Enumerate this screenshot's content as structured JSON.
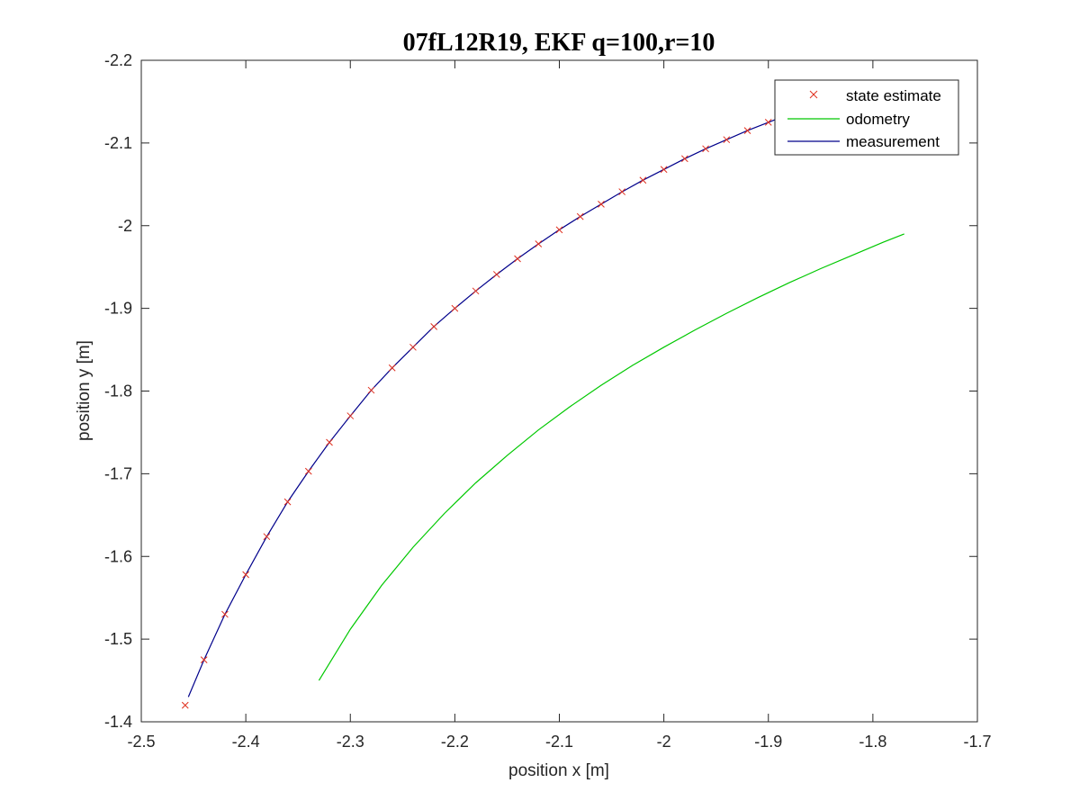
{
  "chart_data": {
    "type": "line",
    "title": "07fL12R19, EKF q=100,r=10",
    "xlabel": "position x [m]",
    "ylabel": "position y [m]",
    "xlim": [
      -2.5,
      -1.7
    ],
    "ylim": [
      -2.2,
      -1.4
    ],
    "xticks": [
      -2.5,
      -2.4,
      -2.3,
      -2.2,
      -2.1,
      -2,
      -1.9,
      -1.8,
      -1.7
    ],
    "yticks": [
      -1.4,
      -1.5,
      -1.6,
      -1.7,
      -1.8,
      -1.9,
      -2,
      -2.1,
      -2.2
    ],
    "xtick_labels": [
      "-2.5",
      "-2.4",
      "-2.3",
      "-2.2",
      "-2.1",
      "-2",
      "-1.9",
      "-1.8",
      "-1.7"
    ],
    "ytick_labels": [
      "-1.4",
      "-1.5",
      "-1.6",
      "-1.7",
      "-1.8",
      "-1.9",
      "-2",
      "-2.1",
      "-2.2"
    ],
    "grid": false,
    "legend_position": "top-right",
    "series": [
      {
        "name": "state estimate",
        "style": "marker-x",
        "color": "#e0301e",
        "x": [
          -2.458,
          -2.44,
          -2.42,
          -2.4,
          -2.38,
          -2.36,
          -2.34,
          -2.32,
          -2.3,
          -2.28,
          -2.26,
          -2.24,
          -2.22,
          -2.2,
          -2.18,
          -2.16,
          -2.14,
          -2.12,
          -2.1,
          -2.08,
          -2.06,
          -2.04,
          -2.02,
          -2.0,
          -1.98,
          -1.96,
          -1.94,
          -1.92,
          -1.9,
          -1.88,
          -1.86,
          -1.84,
          -1.82
        ],
        "y": [
          -1.42,
          -1.475,
          -1.53,
          -1.578,
          -1.624,
          -1.666,
          -1.703,
          -1.738,
          -1.77,
          -1.801,
          -1.828,
          -1.853,
          -1.878,
          -1.9,
          -1.921,
          -1.941,
          -1.96,
          -1.978,
          -1.995,
          -2.011,
          -2.026,
          -2.041,
          -2.055,
          -2.068,
          -2.081,
          -2.093,
          -2.104,
          -2.115,
          -2.125,
          -2.135,
          -2.144,
          -2.152,
          -2.16
        ]
      },
      {
        "name": "odometry",
        "style": "line",
        "color": "#00c800",
        "x": [
          -2.33,
          -2.3,
          -2.27,
          -2.24,
          -2.21,
          -2.18,
          -2.15,
          -2.12,
          -2.09,
          -2.06,
          -2.03,
          -2.0,
          -1.97,
          -1.94,
          -1.91,
          -1.88,
          -1.85,
          -1.82,
          -1.79,
          -1.77
        ],
        "y": [
          -1.45,
          -1.512,
          -1.565,
          -1.611,
          -1.652,
          -1.689,
          -1.722,
          -1.753,
          -1.781,
          -1.807,
          -1.831,
          -1.853,
          -1.874,
          -1.894,
          -1.913,
          -1.931,
          -1.948,
          -1.964,
          -1.98,
          -1.99
        ]
      },
      {
        "name": "measurement",
        "style": "line",
        "color": "#00008b",
        "x": [
          -2.455,
          -2.44,
          -2.42,
          -2.4,
          -2.38,
          -2.36,
          -2.34,
          -2.32,
          -2.3,
          -2.28,
          -2.26,
          -2.24,
          -2.22,
          -2.2,
          -2.18,
          -2.16,
          -2.14,
          -2.12,
          -2.1,
          -2.08,
          -2.06,
          -2.04,
          -2.02,
          -2.0,
          -1.98,
          -1.96,
          -1.94,
          -1.92,
          -1.9,
          -1.88,
          -1.86,
          -1.84,
          -1.82,
          -1.8
        ],
        "y": [
          -1.43,
          -1.475,
          -1.53,
          -1.578,
          -1.624,
          -1.666,
          -1.703,
          -1.738,
          -1.77,
          -1.801,
          -1.828,
          -1.853,
          -1.878,
          -1.9,
          -1.921,
          -1.941,
          -1.96,
          -1.978,
          -1.995,
          -2.011,
          -2.026,
          -2.041,
          -2.055,
          -2.068,
          -2.081,
          -2.093,
          -2.104,
          -2.115,
          -2.125,
          -2.135,
          -2.144,
          -2.152,
          -2.16,
          -2.167
        ]
      }
    ]
  }
}
